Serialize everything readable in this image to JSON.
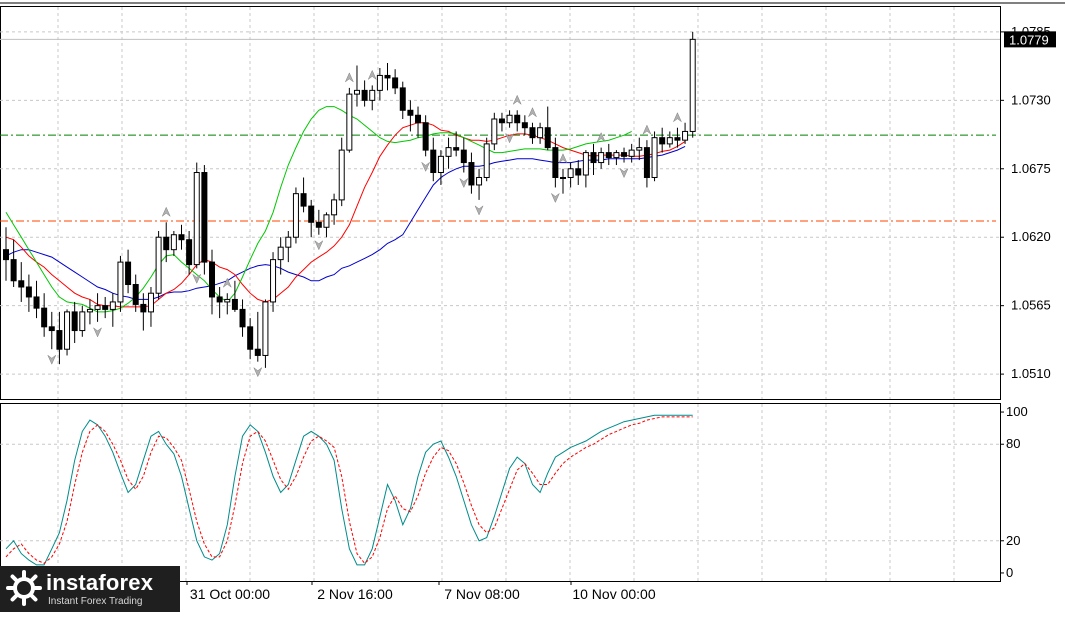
{
  "chart_data": [
    {
      "type": "candlestick",
      "panel": "price",
      "y_ticks": [
        "1.0785",
        "1.0730",
        "1.0675",
        "1.0620",
        "1.0565",
        "1.0510"
      ],
      "ylim": [
        1.049,
        1.0805
      ],
      "current_price_label": "1.0779",
      "x_tick_labels": [
        "31 Oct 00:00",
        "2 Nov 16:00",
        "7 Nov 08:00",
        "10 Nov 00:00"
      ],
      "horizontal_levels": [
        {
          "value": 1.0702,
          "color": "#008000"
        },
        {
          "value": 1.0633,
          "color": "#ff4500"
        }
      ],
      "candles": [
        [
          1.061,
          1.0628,
          1.0585,
          1.0602
        ],
        [
          1.0602,
          1.0618,
          1.058,
          1.0585
        ],
        [
          1.0585,
          1.06,
          1.0568,
          1.058
        ],
        [
          1.058,
          1.059,
          1.056,
          1.0572
        ],
        [
          1.0572,
          1.0585,
          1.0555,
          1.0563
        ],
        [
          1.0563,
          1.0575,
          1.054,
          1.0548
        ],
        [
          1.0548,
          1.056,
          1.053,
          1.0545
        ],
        [
          1.0545,
          1.056,
          1.0518,
          1.053
        ],
        [
          1.053,
          1.0562,
          1.0525,
          1.056
        ],
        [
          1.056,
          1.0568,
          1.0535,
          1.0545
        ],
        [
          1.0545,
          1.0565,
          1.054,
          1.056
        ],
        [
          1.056,
          1.057,
          1.055,
          1.0562
        ],
        [
          1.0562,
          1.0575,
          1.0552,
          1.0565
        ],
        [
          1.0565,
          1.0572,
          1.0555,
          1.0562
        ],
        [
          1.0562,
          1.0575,
          1.0548,
          1.0568
        ],
        [
          1.0568,
          1.0605,
          1.056,
          1.06
        ],
        [
          1.06,
          1.061,
          1.0575,
          1.0582
        ],
        [
          1.0582,
          1.059,
          1.056,
          1.0566
        ],
        [
          1.0566,
          1.0575,
          1.0545,
          1.056
        ],
        [
          1.056,
          1.058,
          1.0548,
          1.0575
        ],
        [
          1.0575,
          1.0625,
          1.057,
          1.062
        ],
        [
          1.062,
          1.0632,
          1.06,
          1.061
        ],
        [
          1.061,
          1.0625,
          1.0605,
          1.0622
        ],
        [
          1.0622,
          1.063,
          1.061,
          1.0618
        ],
        [
          1.0618,
          1.0625,
          1.059,
          1.0598
        ],
        [
          1.0598,
          1.068,
          1.0595,
          1.0672
        ],
        [
          1.0672,
          1.0678,
          1.059,
          1.06
        ],
        [
          1.06,
          1.061,
          1.0558,
          1.0572
        ],
        [
          1.0572,
          1.058,
          1.0555,
          1.0568
        ],
        [
          1.0568,
          1.0575,
          1.0558,
          1.057
        ],
        [
          1.057,
          1.0585,
          1.056,
          1.0562
        ],
        [
          1.0562,
          1.057,
          1.054,
          1.0548
        ],
        [
          1.0548,
          1.0555,
          1.0522,
          1.053
        ],
        [
          1.053,
          1.056,
          1.052,
          1.0525
        ],
        [
          1.0525,
          1.057,
          1.0515,
          1.0568
        ],
        [
          1.0568,
          1.0608,
          1.056,
          1.0602
        ],
        [
          1.0602,
          1.062,
          1.059,
          1.0612
        ],
        [
          1.0612,
          1.0625,
          1.06,
          1.062
        ],
        [
          1.062,
          1.066,
          1.0615,
          1.0655
        ],
        [
          1.0655,
          1.0668,
          1.064,
          1.0645
        ],
        [
          1.0645,
          1.065,
          1.062,
          1.0632
        ],
        [
          1.0632,
          1.0642,
          1.0622,
          1.0628
        ],
        [
          1.0628,
          1.064,
          1.062,
          1.0638
        ],
        [
          1.0638,
          1.0655,
          1.063,
          1.065
        ],
        [
          1.065,
          1.07,
          1.0645,
          1.069
        ],
        [
          1.069,
          1.074,
          1.0688,
          1.0735
        ],
        [
          1.0735,
          1.0758,
          1.0725,
          1.0738
        ],
        [
          1.0738,
          1.0746,
          1.0725,
          1.073
        ],
        [
          1.073,
          1.0742,
          1.0722,
          1.0738
        ],
        [
          1.0738,
          1.0756,
          1.073,
          1.075
        ],
        [
          1.075,
          1.076,
          1.0738,
          1.0748
        ],
        [
          1.0748,
          1.0755,
          1.0735,
          1.074
        ],
        [
          1.074,
          1.0745,
          1.0715,
          1.0722
        ],
        [
          1.0722,
          1.073,
          1.0705,
          1.0718
        ],
        [
          1.0718,
          1.0725,
          1.07,
          1.0712
        ],
        [
          1.0712,
          1.0718,
          1.0685,
          1.069
        ],
        [
          1.069,
          1.07,
          1.0665,
          1.0672
        ],
        [
          1.0672,
          1.069,
          1.0662,
          1.0685
        ],
        [
          1.0685,
          1.07,
          1.0675,
          1.0692
        ],
        [
          1.0692,
          1.0705,
          1.0685,
          1.069
        ],
        [
          1.069,
          1.07,
          1.0672,
          1.068
        ],
        [
          1.068,
          1.0688,
          1.0655,
          1.0662
        ],
        [
          1.0662,
          1.0675,
          1.065,
          1.0668
        ],
        [
          1.0668,
          1.07,
          1.0665,
          1.0695
        ],
        [
          1.0695,
          1.072,
          1.069,
          1.0715
        ],
        [
          1.0715,
          1.072,
          1.0705,
          1.0712
        ],
        [
          1.0712,
          1.0722,
          1.0708,
          1.0718
        ],
        [
          1.0718,
          1.0722,
          1.0705,
          1.0712
        ],
        [
          1.0712,
          1.0718,
          1.0702,
          1.0708
        ],
        [
          1.0708,
          1.0712,
          1.0695,
          1.07
        ],
        [
          1.07,
          1.0712,
          1.0695,
          1.0708
        ],
        [
          1.0708,
          1.0725,
          1.069,
          1.0692
        ],
        [
          1.0692,
          1.07,
          1.066,
          1.0668
        ],
        [
          1.0668,
          1.0675,
          1.0655,
          1.0668
        ],
        [
          1.0668,
          1.068,
          1.066,
          1.0675
        ],
        [
          1.0675,
          1.0682,
          1.0662,
          1.067
        ],
        [
          1.067,
          1.069,
          1.066,
          1.0688
        ],
        [
          1.0688,
          1.0695,
          1.067,
          1.068
        ],
        [
          1.068,
          1.0692,
          1.0675,
          1.0688
        ],
        [
          1.0688,
          1.0695,
          1.0678,
          1.0684
        ],
        [
          1.0684,
          1.069,
          1.0678,
          1.0688
        ],
        [
          1.0688,
          1.0692,
          1.068,
          1.0685
        ],
        [
          1.0685,
          1.0695,
          1.068,
          1.069
        ],
        [
          1.069,
          1.07,
          1.0682,
          1.0692
        ],
        [
          1.0692,
          1.0698,
          1.066,
          1.0668
        ],
        [
          1.0668,
          1.0705,
          1.0665,
          1.07
        ],
        [
          1.07,
          1.0708,
          1.0688,
          1.0695
        ],
        [
          1.0695,
          1.0705,
          1.0692,
          1.07
        ],
        [
          1.07,
          1.0708,
          1.0692,
          1.0698
        ],
        [
          1.0698,
          1.0712,
          1.0695,
          1.0705
        ],
        [
          1.0705,
          1.0785,
          1.07,
          1.0779
        ]
      ],
      "series": [
        {
          "color": "#0000cd",
          "values": [
            1.0605,
            1.0608,
            1.061,
            1.061,
            1.0608,
            1.0606,
            1.0604,
            1.06,
            1.0596,
            1.0592,
            1.0588,
            1.0584,
            1.058,
            1.0578,
            1.0575,
            1.0573,
            1.0572,
            1.057,
            1.057,
            1.057,
            1.0572,
            1.0575,
            1.0576,
            1.0576,
            1.0577,
            1.0579,
            1.058,
            1.0581,
            1.0583,
            1.0585,
            1.0589,
            1.0592,
            1.0595,
            1.0597,
            1.0598,
            1.0597,
            1.0595,
            1.0592,
            1.059,
            1.0588,
            1.0585,
            1.0585,
            1.0588,
            1.059,
            1.0595,
            1.0597,
            1.06,
            1.0603,
            1.0606,
            1.061,
            1.0615,
            1.0618,
            1.0622,
            1.0632,
            1.0642,
            1.0652,
            1.0662,
            1.0668,
            1.0672,
            1.0675,
            1.0677,
            1.0677,
            1.0677,
            1.0678,
            1.068,
            1.0681,
            1.0682,
            1.0683,
            1.0683,
            1.0683,
            1.0682,
            1.0681,
            1.068,
            1.068,
            1.068,
            1.0681,
            1.0682,
            1.0682,
            1.0682,
            1.0683,
            1.0683,
            1.0683,
            1.0683,
            1.0683,
            1.0684,
            1.0685,
            1.0686,
            1.0688,
            1.069,
            1.0693
          ]
        },
        {
          "color": "#ff0000",
          "values": [
            1.062,
            1.0618,
            1.0612,
            1.0605,
            1.06,
            1.0596,
            1.059,
            1.0585,
            1.058,
            1.0575,
            1.0572,
            1.057,
            1.0566,
            1.0565,
            1.0565,
            1.0564,
            1.0564,
            1.0564,
            1.0564,
            1.0565,
            1.057,
            1.0575,
            1.0578,
            1.0583,
            1.059,
            1.0598,
            1.0602,
            1.06,
            1.0596,
            1.0594,
            1.059,
            1.0582,
            1.0575,
            1.057,
            1.0568,
            1.057,
            1.0575,
            1.058,
            1.0588,
            1.0594,
            1.06,
            1.0604,
            1.0608,
            1.0613,
            1.062,
            1.063,
            1.0645,
            1.066,
            1.0672,
            1.0685,
            1.0694,
            1.0702,
            1.0708,
            1.071,
            1.0712,
            1.0712,
            1.071,
            1.0706,
            1.0705,
            1.0702,
            1.07,
            1.0698,
            1.0698,
            1.0697,
            1.0698,
            1.07,
            1.0702,
            1.0703,
            1.0703,
            1.0702,
            1.07,
            1.0698,
            1.0695,
            1.0692,
            1.069,
            1.0688,
            1.0686,
            1.0685,
            1.0686,
            1.0686,
            1.0686,
            1.0686,
            1.0685,
            1.0685,
            1.0686,
            1.0687,
            1.0689,
            1.069,
            1.0693,
            1.0697
          ]
        },
        {
          "color": "#00c800",
          "values": [
            1.064,
            1.063,
            1.062,
            1.061,
            1.06,
            1.059,
            1.058,
            1.0572,
            1.0568,
            1.0567,
            1.0566,
            1.0563,
            1.056,
            1.056,
            1.0561,
            1.0563,
            1.0567,
            1.0572,
            1.0579,
            1.0588,
            1.0598,
            1.0605,
            1.0606,
            1.06,
            1.0595,
            1.059,
            1.0585,
            1.0578,
            1.0572,
            1.0568,
            1.0575,
            1.0588,
            1.0602,
            1.0615,
            1.0625,
            1.064,
            1.066,
            1.0678,
            1.0692,
            1.0705,
            1.0715,
            1.0722,
            1.0725,
            1.0725,
            1.0722,
            1.0718,
            1.0715,
            1.071,
            1.0705,
            1.07,
            1.0697,
            1.0696,
            1.0697,
            1.0698,
            1.07,
            1.0701,
            1.0703,
            1.0704,
            1.0704,
            1.0703,
            1.07,
            1.0697,
            1.0694,
            1.0691,
            1.0688,
            1.0688,
            1.0689,
            1.069,
            1.0691,
            1.0691,
            1.0691,
            1.069,
            1.069,
            1.069,
            1.0691,
            1.0693,
            1.0695,
            1.0696,
            1.0697,
            1.0698,
            1.07,
            1.0702,
            1.0705
          ]
        }
      ],
      "fractal_up_candles": [
        21,
        29,
        45,
        48,
        67,
        69,
        73,
        78,
        84,
        88
      ],
      "fractal_down_candles": [
        6,
        12,
        25,
        33,
        41,
        55,
        60,
        62,
        66,
        72,
        81
      ]
    },
    {
      "type": "line",
      "panel": "oscillator",
      "y_ticks": [
        "100",
        "80",
        "20",
        "0"
      ],
      "ylim": [
        -5,
        105
      ],
      "levels": [
        80,
        20
      ],
      "series": [
        {
          "color": "#008b8b",
          "style": "solid",
          "values": [
            15,
            20,
            12,
            8,
            5,
            5,
            15,
            25,
            45,
            70,
            88,
            95,
            92,
            85,
            75,
            62,
            50,
            55,
            70,
            85,
            88,
            80,
            74,
            60,
            40,
            20,
            10,
            8,
            12,
            30,
            60,
            85,
            92,
            88,
            75,
            60,
            50,
            55,
            70,
            85,
            88,
            85,
            80,
            70,
            40,
            15,
            5,
            5,
            15,
            35,
            55,
            45,
            30,
            40,
            60,
            75,
            80,
            82,
            72,
            60,
            45,
            30,
            20,
            22,
            35,
            50,
            65,
            72,
            68,
            55,
            50,
            62,
            72,
            75,
            78,
            80,
            82,
            85,
            88,
            90,
            92,
            94,
            95,
            96,
            97,
            98,
            98,
            98,
            98,
            98,
            98
          ]
        },
        {
          "color": "#ff0000",
          "style": "dashed",
          "values": [
            10,
            15,
            18,
            12,
            8,
            6,
            10,
            18,
            32,
            55,
            75,
            88,
            92,
            88,
            80,
            70,
            58,
            52,
            60,
            75,
            85,
            84,
            78,
            70,
            52,
            32,
            18,
            10,
            10,
            20,
            42,
            68,
            85,
            88,
            82,
            70,
            58,
            52,
            60,
            72,
            82,
            85,
            82,
            78,
            60,
            32,
            12,
            6,
            10,
            22,
            40,
            48,
            40,
            38,
            48,
            62,
            72,
            78,
            76,
            68,
            56,
            42,
            30,
            25,
            28,
            40,
            52,
            64,
            68,
            62,
            55,
            55,
            62,
            68,
            72,
            75,
            78,
            80,
            83,
            86,
            88,
            90,
            92,
            93,
            95,
            96,
            97,
            97,
            97,
            97,
            97
          ]
        }
      ]
    }
  ],
  "branding": {
    "name": "instaforex",
    "tagline": "Instant Forex Trading"
  }
}
